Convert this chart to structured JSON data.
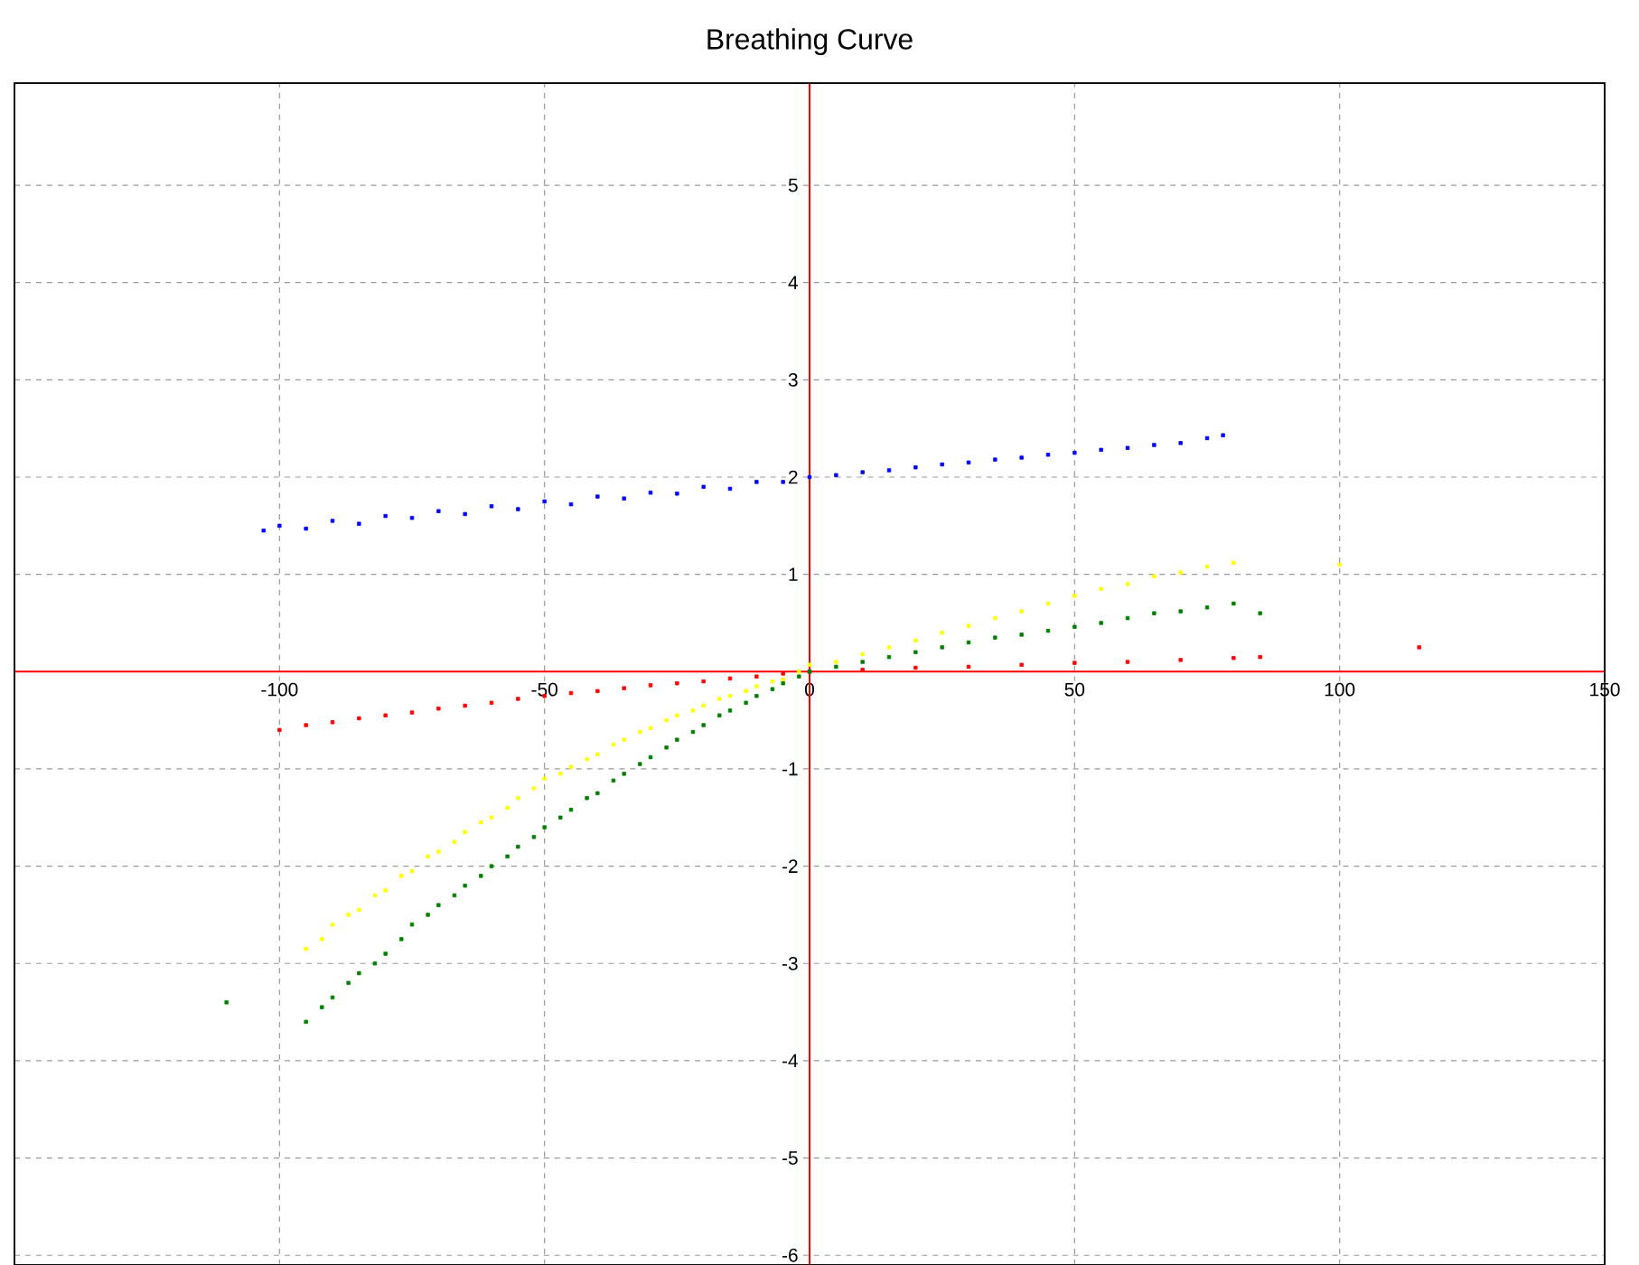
{
  "chart_data": {
    "type": "scatter",
    "title": "Breathing Curve",
    "xlim": [
      -150,
      150
    ],
    "ylim": [
      -6.1,
      6.05
    ],
    "xticks": [
      -100,
      -50,
      0,
      50,
      100,
      150
    ],
    "yticks": [
      -6,
      -5,
      -4,
      -3,
      -2,
      -1,
      1,
      2,
      3,
      4,
      5
    ],
    "grid": true,
    "marker": "square",
    "series": [
      {
        "color": "#0000ff",
        "x": [
          -103,
          -100,
          -95,
          -90,
          -85,
          -80,
          -75,
          -70,
          -65,
          -60,
          -55,
          -50,
          -45,
          -40,
          -35,
          -30,
          -25,
          -20,
          -15,
          -10,
          -5,
          0,
          5,
          10,
          15,
          20,
          25,
          30,
          35,
          40,
          45,
          50,
          55,
          60,
          65,
          70,
          75,
          78
        ],
        "values": [
          1.45,
          1.5,
          1.47,
          1.55,
          1.52,
          1.6,
          1.58,
          1.65,
          1.62,
          1.7,
          1.67,
          1.75,
          1.72,
          1.8,
          1.78,
          1.84,
          1.83,
          1.9,
          1.88,
          1.95,
          1.95,
          2.0,
          2.02,
          2.05,
          2.07,
          2.1,
          2.13,
          2.15,
          2.18,
          2.2,
          2.23,
          2.25,
          2.28,
          2.3,
          2.33,
          2.35,
          2.4,
          2.43
        ]
      },
      {
        "color": "#ff0000",
        "x": [
          -100,
          -95,
          -90,
          -85,
          -80,
          -75,
          -70,
          -65,
          -60,
          -55,
          -50,
          -45,
          -40,
          -35,
          -30,
          -25,
          -20,
          -15,
          -10,
          -5,
          0,
          10,
          20,
          30,
          40,
          50,
          60,
          70,
          80,
          85,
          115
        ],
        "values": [
          -0.6,
          -0.55,
          -0.52,
          -0.48,
          -0.45,
          -0.42,
          -0.38,
          -0.35,
          -0.32,
          -0.28,
          -0.25,
          -0.22,
          -0.2,
          -0.17,
          -0.14,
          -0.12,
          -0.1,
          -0.07,
          -0.05,
          -0.02,
          0,
          0.02,
          0.04,
          0.05,
          0.07,
          0.09,
          0.1,
          0.12,
          0.14,
          0.15,
          0.25
        ]
      },
      {
        "color": "#ffff00",
        "x": [
          -95,
          -92,
          -90,
          -87,
          -85,
          -82,
          -80,
          -77,
          -75,
          -72,
          -70,
          -67,
          -65,
          -62,
          -60,
          -57,
          -55,
          -52,
          -50,
          -47,
          -45,
          -42,
          -40,
          -37,
          -35,
          -32,
          -30,
          -27,
          -25,
          -22,
          -20,
          -17,
          -15,
          -12,
          -10,
          -7,
          -5,
          -2,
          0,
          5,
          10,
          15,
          20,
          25,
          30,
          35,
          40,
          45,
          50,
          55,
          60,
          65,
          70,
          75,
          80,
          100
        ],
        "values": [
          -2.85,
          -2.75,
          -2.6,
          -2.5,
          -2.45,
          -2.3,
          -2.25,
          -2.1,
          -2.05,
          -1.9,
          -1.85,
          -1.75,
          -1.65,
          -1.55,
          -1.5,
          -1.4,
          -1.3,
          -1.2,
          -1.1,
          -1.05,
          -0.98,
          -0.9,
          -0.85,
          -0.75,
          -0.7,
          -0.62,
          -0.58,
          -0.5,
          -0.45,
          -0.4,
          -0.35,
          -0.28,
          -0.25,
          -0.2,
          -0.15,
          -0.1,
          -0.08,
          0,
          0.07,
          0.1,
          0.18,
          0.25,
          0.32,
          0.4,
          0.47,
          0.55,
          0.62,
          0.7,
          0.78,
          0.85,
          0.9,
          0.98,
          1.02,
          1.08,
          1.12,
          1.1
        ]
      },
      {
        "color": "#008000",
        "x": [
          -110,
          -95,
          -92,
          -90,
          -87,
          -85,
          -82,
          -80,
          -77,
          -75,
          -72,
          -70,
          -67,
          -65,
          -62,
          -60,
          -57,
          -55,
          -52,
          -50,
          -47,
          -45,
          -42,
          -40,
          -37,
          -35,
          -32,
          -30,
          -27,
          -25,
          -22,
          -20,
          -17,
          -15,
          -12,
          -10,
          -7,
          -5,
          -2,
          0,
          5,
          10,
          15,
          20,
          25,
          30,
          35,
          40,
          45,
          50,
          55,
          60,
          65,
          70,
          75,
          80,
          85
        ],
        "values": [
          -3.4,
          -3.6,
          -3.45,
          -3.35,
          -3.2,
          -3.1,
          -3.0,
          -2.9,
          -2.75,
          -2.6,
          -2.5,
          -2.4,
          -2.3,
          -2.2,
          -2.1,
          -2.0,
          -1.9,
          -1.8,
          -1.7,
          -1.6,
          -1.5,
          -1.42,
          -1.3,
          -1.25,
          -1.12,
          -1.05,
          -0.95,
          -0.88,
          -0.78,
          -0.7,
          -0.62,
          -0.55,
          -0.45,
          -0.4,
          -0.32,
          -0.25,
          -0.18,
          -0.12,
          -0.05,
          0,
          0.05,
          0.1,
          0.15,
          0.2,
          0.25,
          0.3,
          0.35,
          0.38,
          0.42,
          0.46,
          0.5,
          0.55,
          0.6,
          0.62,
          0.66,
          0.7,
          0.6
        ]
      }
    ]
  }
}
